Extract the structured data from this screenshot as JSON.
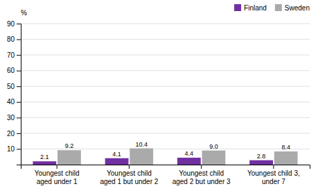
{
  "chart_data": {
    "type": "bar",
    "ylabel": "%",
    "categories": [
      "Youngest child\naged under 1",
      "Youngest child\naged 1 but under 2",
      "Youngest child\naged 2 but under 3",
      "Youngest child 3,\nunder 7"
    ],
    "series": [
      {
        "name": "Finland",
        "color": "#7030A0",
        "values": [
          2.1,
          4.1,
          4.4,
          2.8
        ]
      },
      {
        "name": "Sweden",
        "color": "#AAAAAA",
        "values": [
          9.2,
          10.4,
          9.0,
          8.4
        ],
        "value_labels": [
          "9.2",
          "10.4",
          "9.0",
          "8.4"
        ]
      }
    ],
    "ylim": [
      0,
      90
    ],
    "yticks": [
      10,
      20,
      30,
      40,
      50,
      60,
      70,
      80,
      90
    ],
    "grid": true,
    "legend": "upper right",
    "data_labels": true
  }
}
